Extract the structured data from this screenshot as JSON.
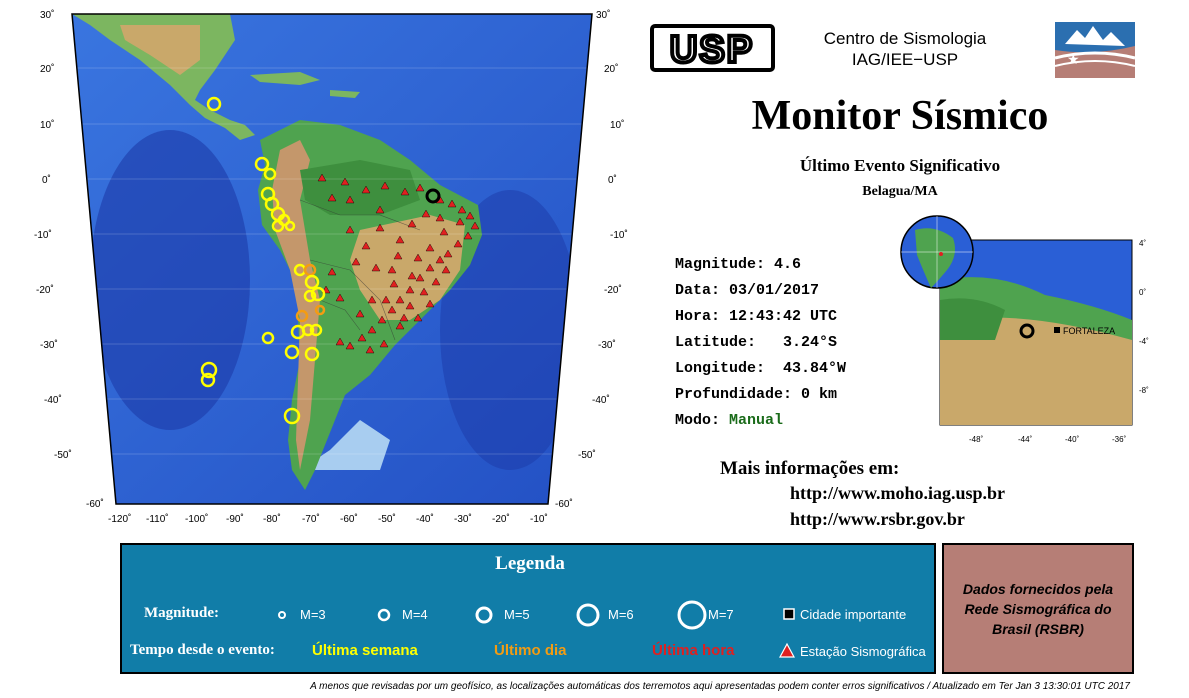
{
  "main_map": {
    "lat_labels_left": [
      "30˚",
      "20˚",
      "10˚",
      "0˚",
      "-10˚",
      "-20˚",
      "-30˚",
      "-40˚",
      "-50˚",
      "-60˚"
    ],
    "lat_labels_right": [
      "30˚",
      "20˚",
      "10˚",
      "0˚",
      "-10˚",
      "-20˚",
      "-30˚",
      "-40˚",
      "-50˚",
      "-60˚"
    ],
    "lon_labels": [
      "-120˚",
      "-110˚",
      "-100˚",
      "-90˚",
      "-80˚",
      "-70˚",
      "-60˚",
      "-50˚",
      "-40˚",
      "-30˚",
      "-20˚",
      "-10˚"
    ],
    "colors": {
      "ocean": "#2a5fd6",
      "deep_ocean": "#1e3fb0",
      "land": "#c9a86a",
      "lowland": "#4fa34f",
      "shelf": "#9fc7ef"
    }
  },
  "header": {
    "usp_logo_text": "USP",
    "centro_line1": "Centro de Sismologia",
    "centro_line2": "IAG/IEE−USP",
    "title": "Monitor Sísmico",
    "subtitle": "Último Evento Significativo",
    "location": "Belagua/MA"
  },
  "event": {
    "magnitude_label": "Magnitude:",
    "magnitude_value": "4.6",
    "date_label": "Data:",
    "date_value": "03/01/2017",
    "time_label": "Hora:",
    "time_value": "12:43:42 UTC",
    "lat_label": "Latitude:",
    "lat_value": "3.24°S",
    "lon_label": "Longitude:",
    "lon_value": "43.84°W",
    "depth_label": "Profundidade:",
    "depth_value": "0 km",
    "mode_label": "Modo:",
    "mode_value": "Manual"
  },
  "inset": {
    "city": "FORTALEZA",
    "lon_labels": [
      "-48˚",
      "-44˚",
      "-40˚",
      "-36˚"
    ],
    "lat_labels": [
      "4˚",
      "0˚",
      "-4˚",
      "-8˚"
    ]
  },
  "more_info": {
    "heading": "Mais informações em:",
    "url1": "http://www.moho.iag.usp.br",
    "url2": "http://www.rsbr.gov.br"
  },
  "legend": {
    "title": "Legenda",
    "magnitude_label": "Magnitude:",
    "m3": "M=3",
    "m4": "M=4",
    "m5": "M=5",
    "m6": "M=6",
    "m7": "M=7",
    "city_label": "Cidade importante",
    "time_label": "Tempo desde o evento:",
    "week": "Última semana",
    "day": "Último dia",
    "hour": "Última hora",
    "station_label": "Estação Sismográfica",
    "colors": {
      "week": "#ffff00",
      "day": "#f39c12",
      "hour": "#e02020",
      "station": "#e02020"
    }
  },
  "rsbr": {
    "text": "Dados fornecidos pela Rede Sismográfica do Brasil (RSBR)"
  },
  "footer": {
    "text": "A menos que revisadas por um geofísico, as localizações automáticas dos terremotos aqui apresentadas podem conter erros significativos / Atualizado em Ter Jan  3 13:30:01 UTC 2017"
  }
}
